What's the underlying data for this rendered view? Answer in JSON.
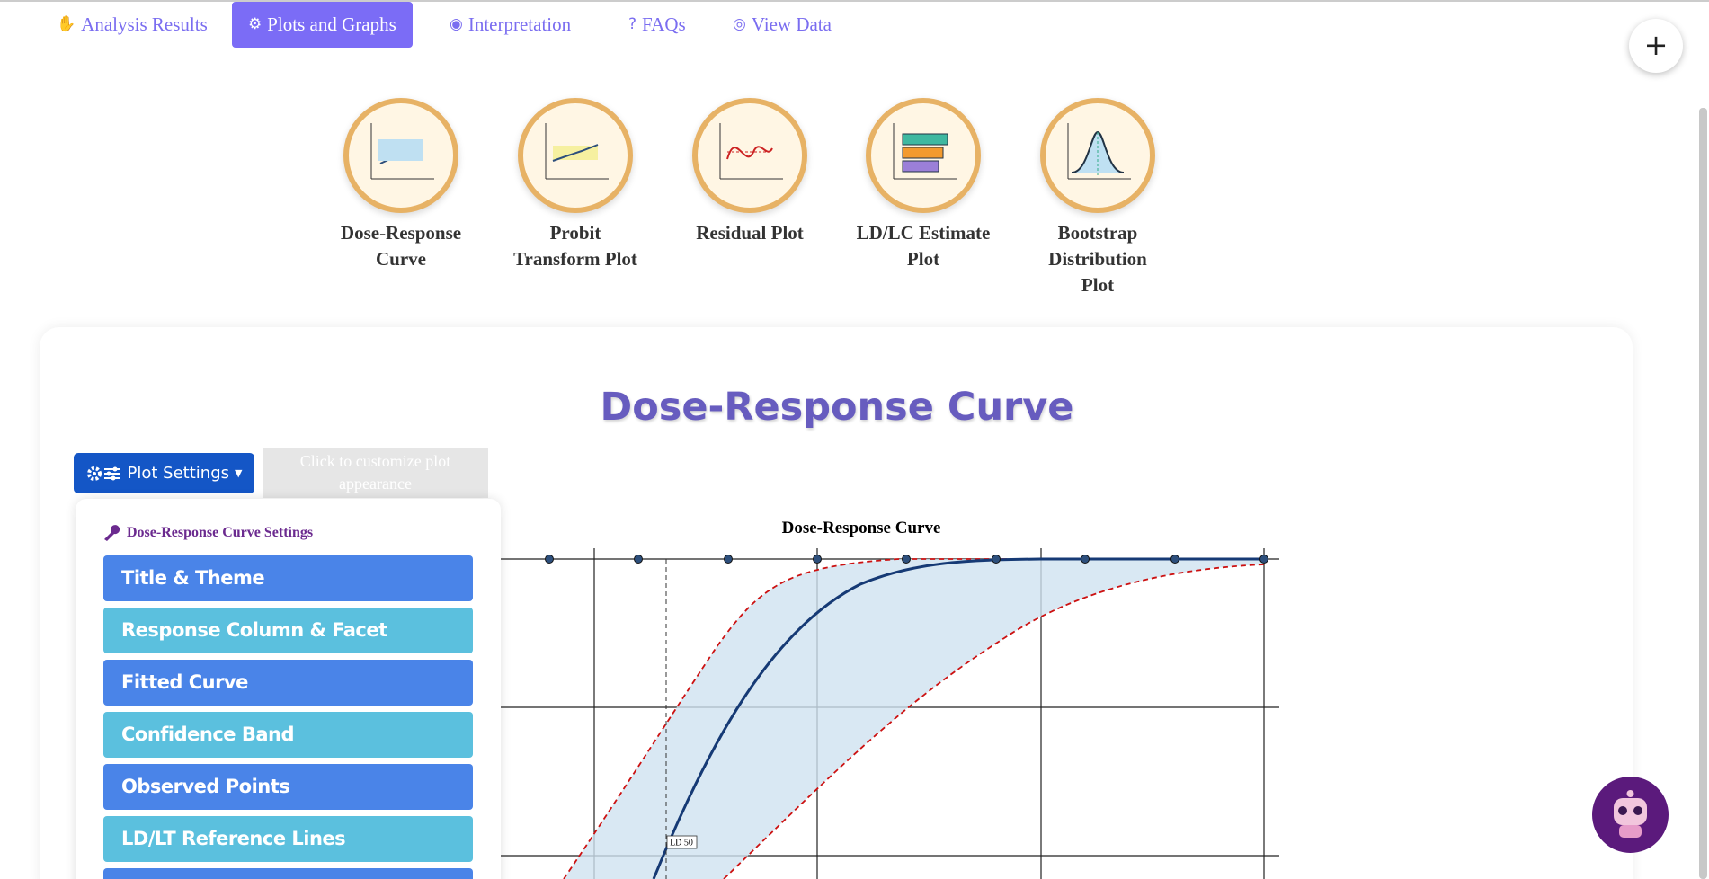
{
  "nav": {
    "tabs": [
      "Analysis Results",
      "Plots and Graphs",
      "Interpretation",
      "FAQs",
      "View Data"
    ]
  },
  "plot_cards": [
    "Dose-Response Curve",
    "Probit Transform Plot",
    "Residual Plot",
    "LD/LC Estimate Plot",
    "Bootstrap Distribution Plot"
  ],
  "panel": {
    "title": "Dose-Response Curve",
    "settings_button": "Plot Settings",
    "tooltip": "Click to customize plot appearance",
    "menu": {
      "header": "Dose-Response Curve Settings",
      "items": [
        "Title & Theme",
        "Response Column & Facet",
        "Fitted Curve",
        "Confidence Band",
        "Observed Points",
        "LD/LT Reference Lines"
      ]
    }
  },
  "plot": {
    "title": "Dose-Response Curve",
    "annotation": "LD 50"
  }
}
